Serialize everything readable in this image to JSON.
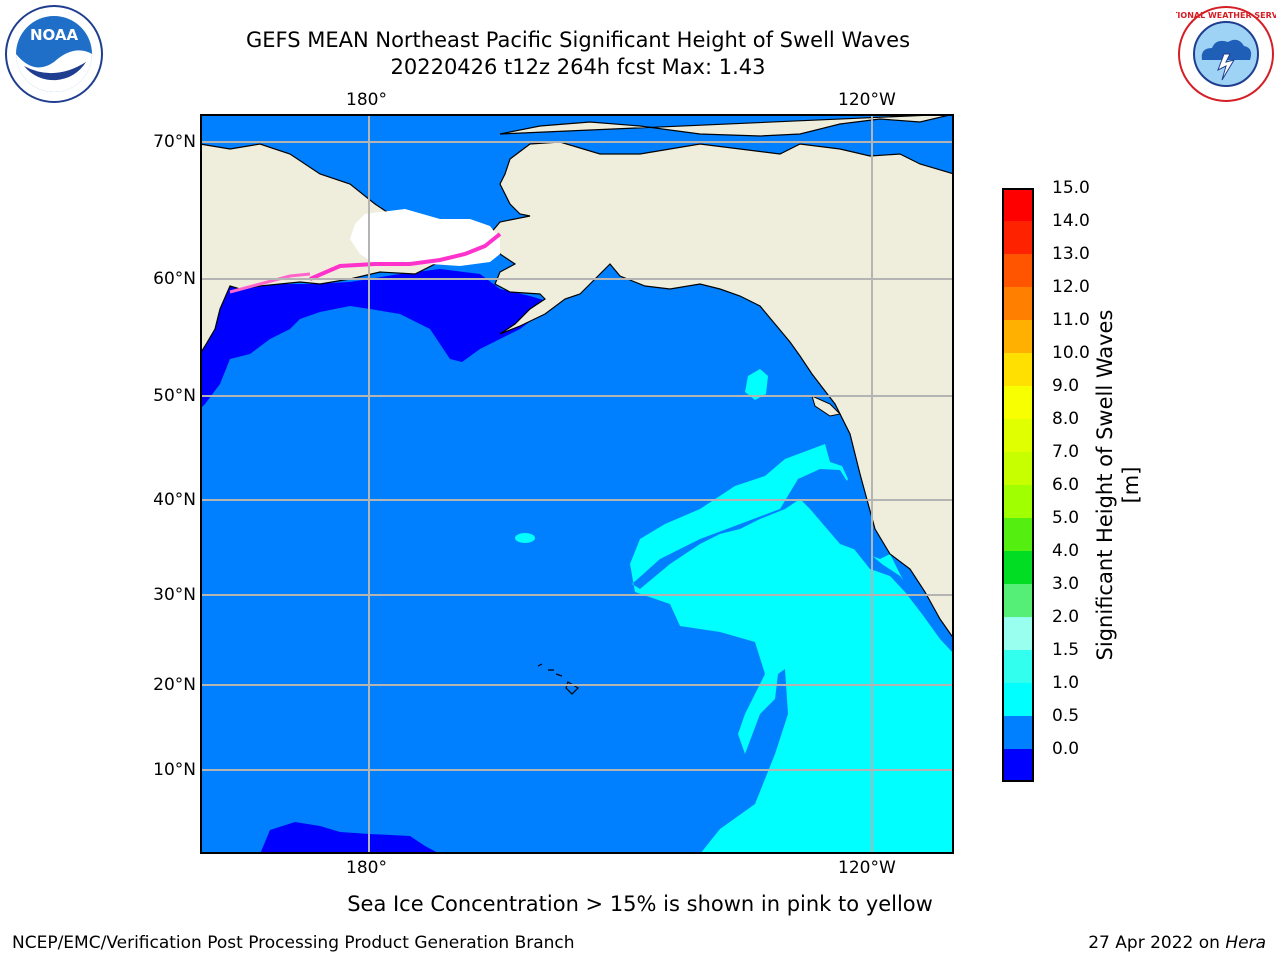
{
  "title": {
    "line1": "GEFS MEAN Northeast Pacific Significant Height of Swell Waves",
    "line2": "20220426 t12z 264h fcst   Max: 1.43"
  },
  "logos": {
    "left": {
      "icon": "noaa-logo",
      "text": "NOAA"
    },
    "right": {
      "icon": "nws-logo",
      "text": "NATIONAL WEATHER SERVICE"
    }
  },
  "map": {
    "lon_labels_top": [
      "180°",
      "120°W"
    ],
    "lon_labels_bottom": [
      "180°",
      "120°W"
    ],
    "lat_labels": [
      "70°N",
      "60°N",
      "50°N",
      "40°N",
      "30°N",
      "20°N",
      "10°N"
    ]
  },
  "colorbar": {
    "label": "Significant Height of Swell Waves [m]",
    "ticks": [
      "15.0",
      "14.0",
      "13.0",
      "12.0",
      "11.0",
      "10.0",
      "9.0",
      "8.0",
      "7.0",
      "6.0",
      "5.0",
      "4.0",
      "3.0",
      "2.0",
      "1.5",
      "1.0",
      "0.5",
      "0.0"
    ],
    "colors_top_to_bottom": [
      "#ff0000",
      "#ff2200",
      "#ff5500",
      "#ff8000",
      "#ffb000",
      "#ffe000",
      "#f8ff00",
      "#e0ff00",
      "#c8ff00",
      "#a0ff00",
      "#55ee11",
      "#00dd22",
      "#55ee77",
      "#99ffee",
      "#33ffee",
      "#00ffff",
      "#0080ff",
      "#0000ff"
    ]
  },
  "colors": {
    "land": "#efeedc",
    "ocean_low": "#0000ff",
    "ocean_mid": "#0080ff",
    "ocean_high": "#00ffff",
    "grid": "#b4b4b4"
  },
  "note": "Sea Ice Concentration > 15% is shown in pink to yellow",
  "footer": {
    "left": "NCEP/EMC/Verification Post Processing Product Generation Branch",
    "right_date": "27 Apr 2022 on",
    "right_host": "Hera"
  }
}
